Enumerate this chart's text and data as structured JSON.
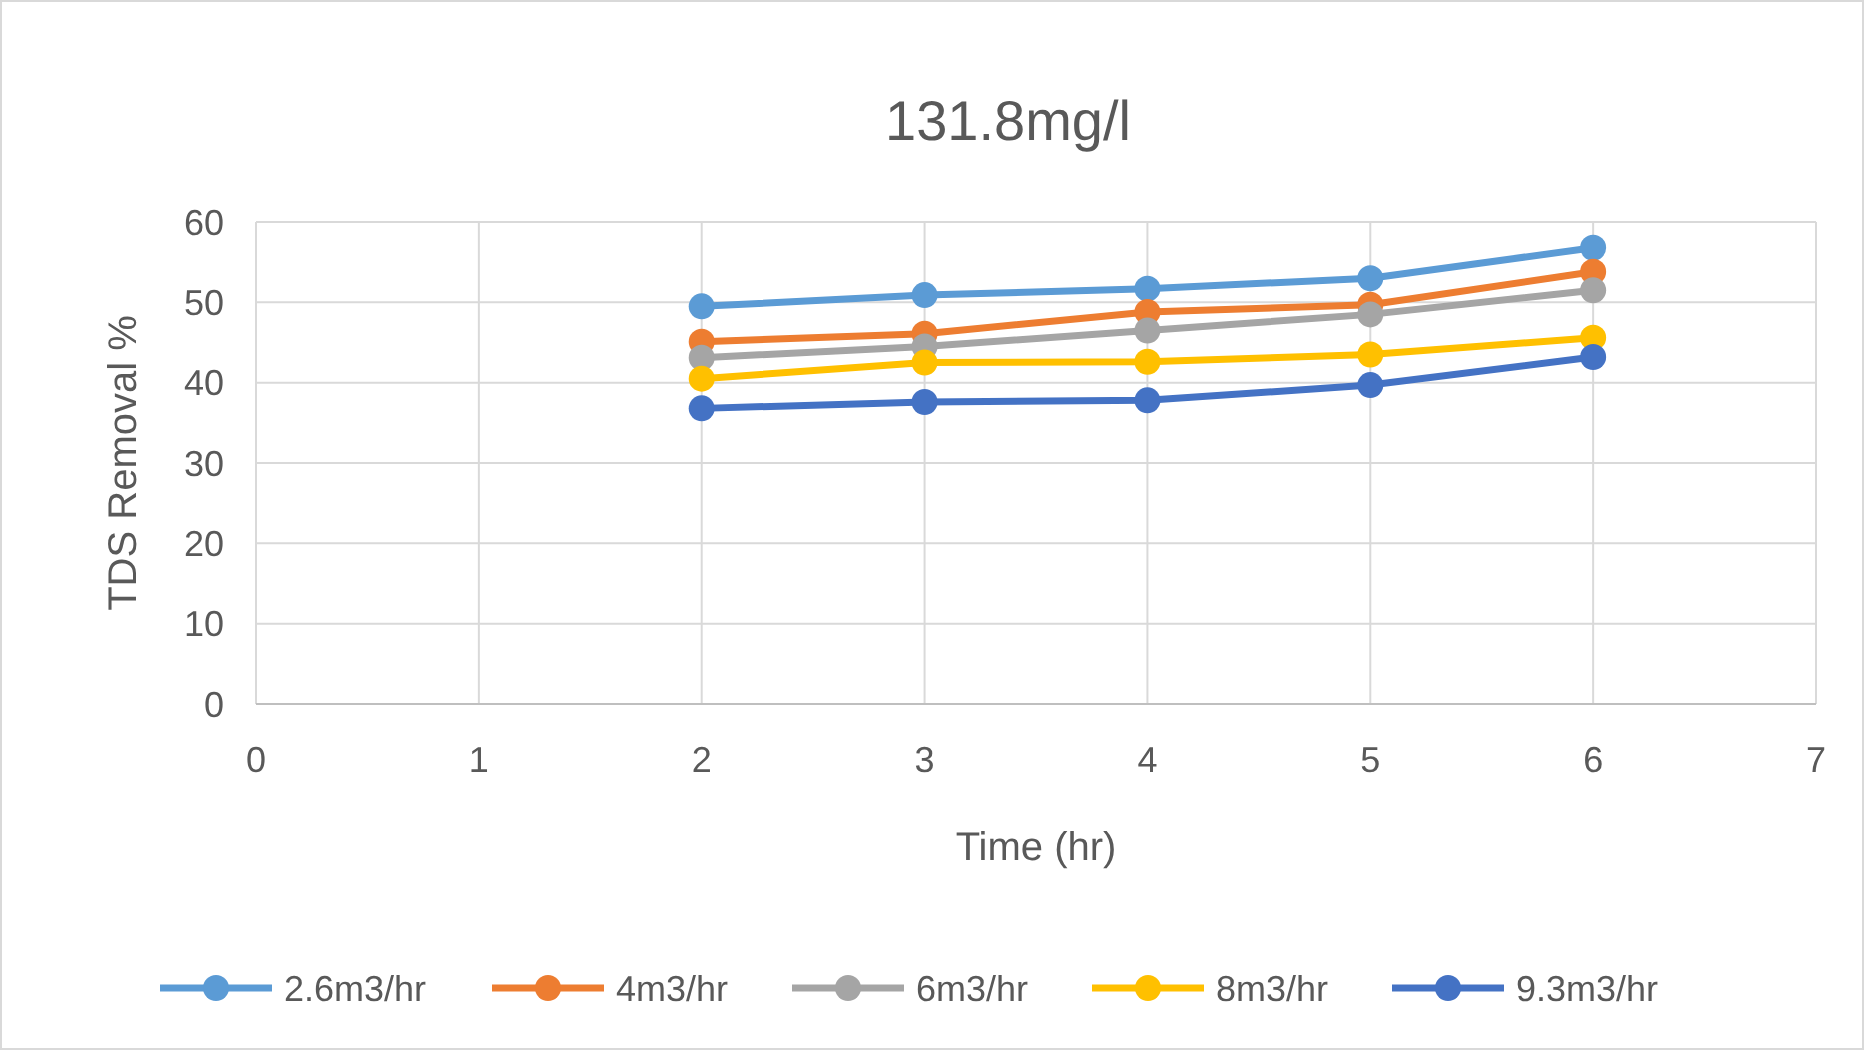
{
  "chart_data": {
    "type": "line",
    "title": "131.8mg/l",
    "xlabel": "Time (hr)",
    "ylabel": "TDS Removal %",
    "x": [
      2,
      3,
      4,
      5,
      6
    ],
    "series": [
      {
        "name": "2.6m3/hr",
        "color": "#5b9bd5",
        "values": [
          49.5,
          50.9,
          51.7,
          53.0,
          56.8
        ]
      },
      {
        "name": "4m3/hr",
        "color": "#ed7d31",
        "values": [
          45.1,
          46.1,
          48.8,
          49.7,
          53.8
        ]
      },
      {
        "name": "6m3/hr",
        "color": "#a5a5a5",
        "values": [
          43.1,
          44.5,
          46.5,
          48.5,
          51.5
        ]
      },
      {
        "name": "8m3/hr",
        "color": "#ffc000",
        "values": [
          40.5,
          42.5,
          42.6,
          43.5,
          45.6
        ]
      },
      {
        "name": "9.3m3/hr",
        "color": "#4472c4",
        "values": [
          36.8,
          37.6,
          37.8,
          39.7,
          43.2
        ]
      }
    ],
    "xlim": [
      0,
      7
    ],
    "xticks": [
      0,
      1,
      2,
      3,
      4,
      5,
      6,
      7
    ],
    "ylim": [
      0,
      60
    ],
    "yticks": [
      0,
      10,
      20,
      30,
      40,
      50,
      60
    ],
    "grid": true,
    "legend": "bottom",
    "marker": "circle",
    "line_style": "solid"
  }
}
